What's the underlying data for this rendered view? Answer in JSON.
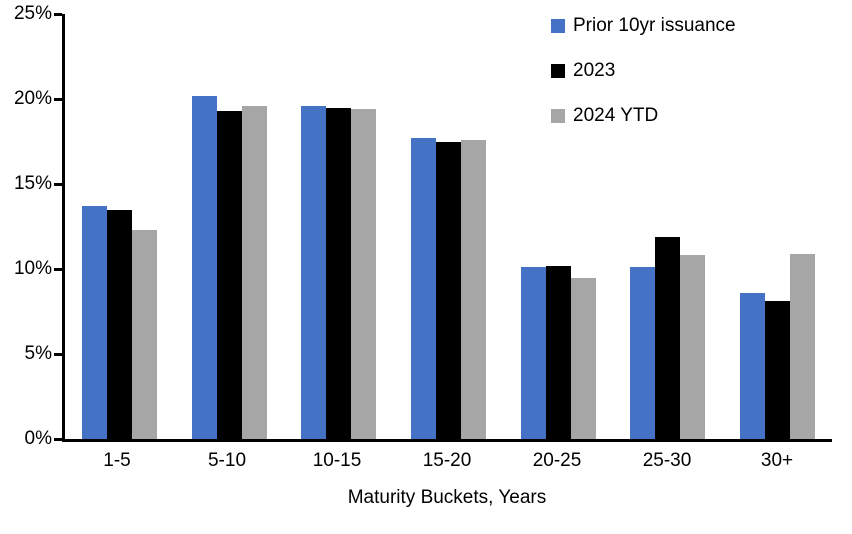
{
  "chart_data": {
    "type": "bar",
    "title": "",
    "xlabel": "Maturity Buckets, Years",
    "ylabel": "",
    "categories": [
      "1-5",
      "5-10",
      "10-15",
      "15-20",
      "20-25",
      "25-30",
      "30+"
    ],
    "series": [
      {
        "name": "Prior 10yr issuance",
        "color": "#4472C4",
        "values": [
          13.7,
          20.2,
          19.6,
          17.7,
          10.1,
          10.1,
          8.6
        ]
      },
      {
        "name": "2023",
        "color": "#000000",
        "values": [
          13.5,
          19.3,
          19.5,
          17.5,
          10.2,
          11.9,
          8.1
        ]
      },
      {
        "name": "2024 YTD",
        "color": "#A6A6A6",
        "values": [
          12.3,
          19.6,
          19.4,
          17.6,
          9.5,
          10.8,
          10.9
        ]
      }
    ],
    "ylim": [
      0,
      25
    ],
    "yticks": [
      0,
      5,
      10,
      15,
      20,
      25
    ],
    "ytick_labels": [
      "0%",
      "5%",
      "10%",
      "15%",
      "20%",
      "25%"
    ],
    "grid": false,
    "legend_position": "top-right",
    "axis_color": "#000000",
    "background_color": "#FFFFFF"
  }
}
